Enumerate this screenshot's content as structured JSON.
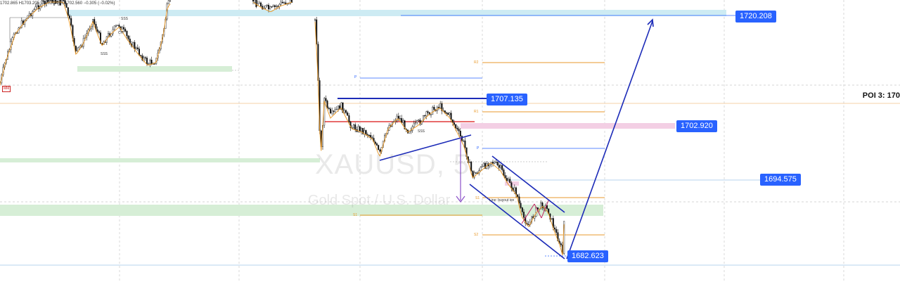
{
  "ohlc_text": "1702.865  H1703.205  L1702.245  C1702.560  −0.305 (−0.02%)",
  "symbol": "XAUUSD, 5",
  "description": "Gold Spot / U.S. Dollar",
  "mm_badge": "MM",
  "poi_label": "POI 3: 170",
  "annotations": {
    "sss": "SSS",
    "choch": "CH",
    "choch_text": "Line: buyout  ion"
  },
  "pivots": {
    "p": "P",
    "r1": "R1",
    "r2": "R2",
    "s1": "S1",
    "s2": "S2"
  },
  "colors": {
    "candle": "#111111",
    "ma": "#e89a2c",
    "blue": "#1c2bb8",
    "tag": "#2962ff",
    "red_level": "#e03a3a",
    "supply_zone": "#cdebf3",
    "demand_zone": "#d6eed6",
    "pink_zone": "#f3cfe4",
    "pivot_orange": "#e89a2c",
    "pivot_blue": "#2962ff"
  },
  "chart_data": {
    "type": "candlestick",
    "symbol": "XAUUSD",
    "timeframe": "5",
    "y_range": [
      1680,
      1722
    ],
    "price_labels": [
      {
        "id": "tag_1720",
        "value": 1720.208,
        "text": "1720.208"
      },
      {
        "id": "tag_1707",
        "value": 1707.135,
        "text": "1707.135"
      },
      {
        "id": "tag_1702",
        "value": 1702.92,
        "text": "1702.920"
      },
      {
        "id": "tag_1694",
        "value": 1694.575,
        "text": "1694.575"
      },
      {
        "id": "tag_1682",
        "value": 1682.623,
        "text": "1682.623"
      }
    ],
    "projection": {
      "from": 1682.623,
      "to": 1720.208
    }
  }
}
